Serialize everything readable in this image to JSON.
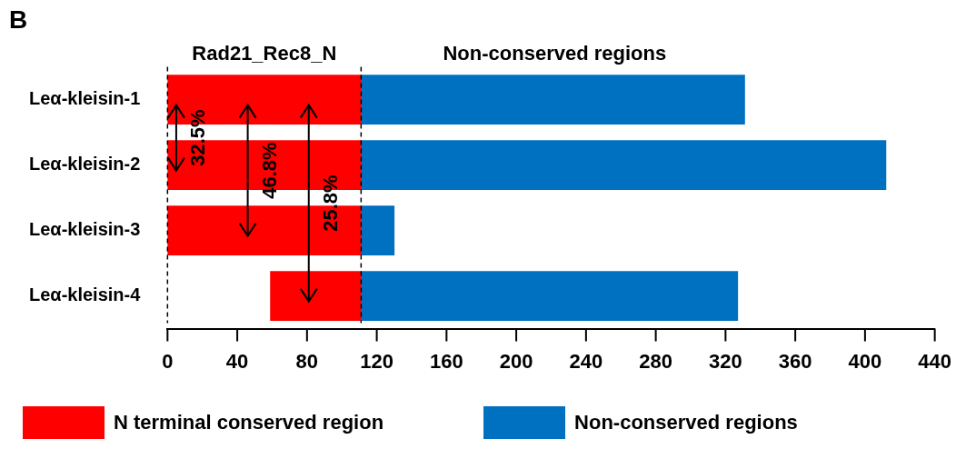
{
  "chart_data": {
    "type": "bar",
    "orientation": "horizontal",
    "title": "B",
    "categories": [
      "Leα-kleisin-1",
      "Leα-kleisin-2",
      "Leα-kleisin-3",
      "Leα-kleisin-4"
    ],
    "series": [
      {
        "name": "N terminal conserved region",
        "color": "#ff0000",
        "base": [
          0,
          0,
          0,
          59
        ],
        "values": [
          111,
          111,
          111,
          52
        ]
      },
      {
        "name": "Non-conserved regions",
        "color": "#0070c0",
        "base": [
          111,
          111,
          111,
          111
        ],
        "values": [
          220,
          301,
          19,
          216
        ]
      }
    ],
    "xlim": [
      0,
      440
    ],
    "xticks": [
      0,
      40,
      80,
      120,
      160,
      200,
      240,
      280,
      320,
      360,
      400,
      440
    ],
    "legend": "bottom",
    "ref_lines": [
      {
        "axis": "x",
        "value": 0,
        "color": "#000000",
        "line_style": "dashed"
      },
      {
        "axis": "x",
        "value": 111,
        "color": "#000000",
        "line_style": "dashed"
      }
    ],
    "annotations": [
      "Rad21_Rec8_N",
      "Non-conserved regions",
      "32.5%",
      "46.8%",
      "25.8%"
    ]
  }
}
